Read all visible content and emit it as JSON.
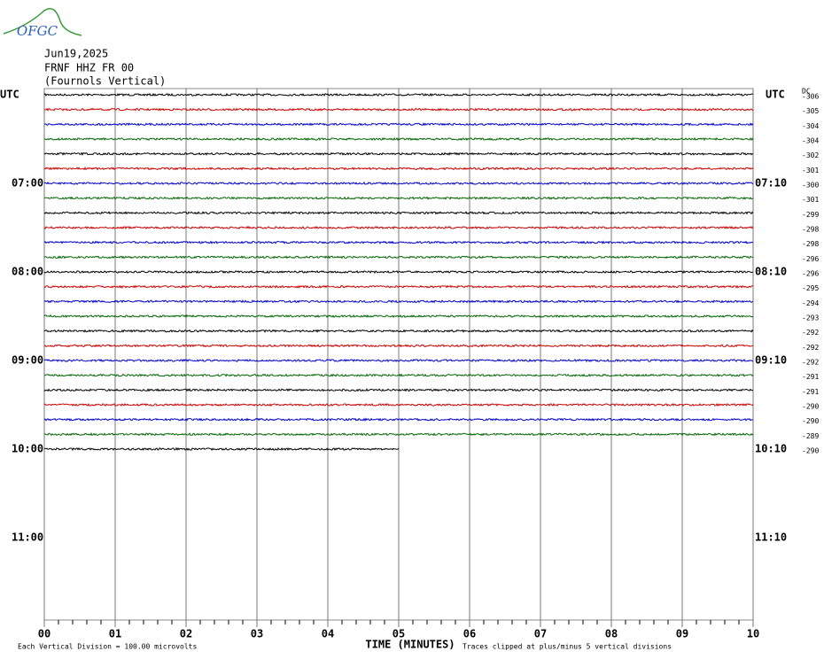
{
  "chart_data": {
    "type": "helicorder",
    "logo": "OFGC",
    "title_lines": [
      "Jun19,2025",
      "FRNF HHZ FR 00",
      "(Fournols Vertical)"
    ],
    "left_label": "UTC",
    "right_label": "UTC",
    "dc_label": "DC",
    "hour_labels_left": [
      "07:00",
      "08:00",
      "09:00",
      "10:00",
      "11:00"
    ],
    "hour_labels_right": [
      "07:10",
      "08:10",
      "09:10",
      "10:10",
      "11:10"
    ],
    "xlabel": "TIME (MINUTES)",
    "xlim": [
      0,
      10
    ],
    "xticks": [
      {
        "value": 0,
        "label": "00"
      },
      {
        "value": 1,
        "label": "01"
      },
      {
        "value": 2,
        "label": "02"
      },
      {
        "value": 3,
        "label": "03"
      },
      {
        "value": 4,
        "label": "04"
      },
      {
        "value": 5,
        "label": "05"
      },
      {
        "value": 6,
        "label": "06"
      },
      {
        "value": 7,
        "label": "07"
      },
      {
        "value": 8,
        "label": "08"
      },
      {
        "value": 9,
        "label": "09"
      },
      {
        "value": 10,
        "label": "10"
      }
    ],
    "trace_colors": [
      "#000000",
      "#cc0000",
      "#0000cc",
      "#006600"
    ],
    "traces": [
      {
        "dc": -306
      },
      {
        "dc": -305
      },
      {
        "dc": -304
      },
      {
        "dc": -304
      },
      {
        "dc": -302
      },
      {
        "dc": -301
      },
      {
        "dc": -300
      },
      {
        "dc": -301
      },
      {
        "dc": -299
      },
      {
        "dc": -298
      },
      {
        "dc": -298
      },
      {
        "dc": -296
      },
      {
        "dc": -296
      },
      {
        "dc": -295
      },
      {
        "dc": -294
      },
      {
        "dc": -293
      },
      {
        "dc": -292
      },
      {
        "dc": -292
      },
      {
        "dc": -292
      },
      {
        "dc": -291
      },
      {
        "dc": -291
      },
      {
        "dc": -290
      },
      {
        "dc": -290
      },
      {
        "dc": -289
      },
      {
        "dc": -290,
        "end": 5
      }
    ],
    "footer_left": "Each Vertical Division =  100.00 microvolts",
    "footer_right": "Traces clipped at plus/minus 5 vertical divisions"
  }
}
